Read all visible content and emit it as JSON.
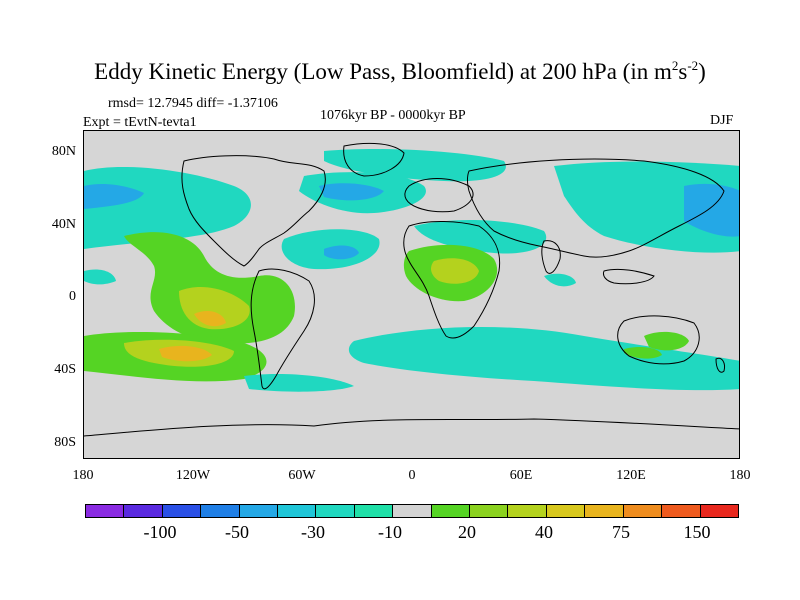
{
  "title": {
    "main": "Eddy Kinetic Energy (Low Pass, Bloomfield) at 200 hPa (in m",
    "sup1": "2",
    "mid": "s",
    "sup2": "-2",
    "end": ")"
  },
  "stats": "rmsd= 12.7945 diff= -1.37106",
  "experiment": "Expt = tEvtN-tevta1",
  "period": "1076kyr BP - 0000kyr BP",
  "season": "DJF",
  "y_ticks": [
    "80N",
    "40N",
    "0",
    "40S",
    "80S"
  ],
  "x_ticks": [
    "180",
    "120W",
    "60W",
    "0",
    "60E",
    "120E",
    "180"
  ],
  "colorbar": {
    "colors": [
      "#8a2be2",
      "#5a2ae0",
      "#2a50e6",
      "#1f7fe6",
      "#24a8e6",
      "#1fc6d8",
      "#20d8c0",
      "#1fe0a8",
      "#d3d3d3",
      "#55d424",
      "#8bd21f",
      "#b4d21e",
      "#d8c81e",
      "#e8b41e",
      "#ee8c1e",
      "#ee5a1e",
      "#e8281e"
    ],
    "labels": [
      "-100",
      "-50",
      "-30",
      "-10",
      "20",
      "40",
      "75",
      "150"
    ]
  },
  "colors": {
    "background_field": "#d6d6d6",
    "light_cyan": "#20d8c0",
    "mid_cyan": "#1fc6d8",
    "blue": "#24a8e6",
    "green": "#55d424",
    "yellow_green": "#b4d21e",
    "orange": "#e8b41e"
  }
}
